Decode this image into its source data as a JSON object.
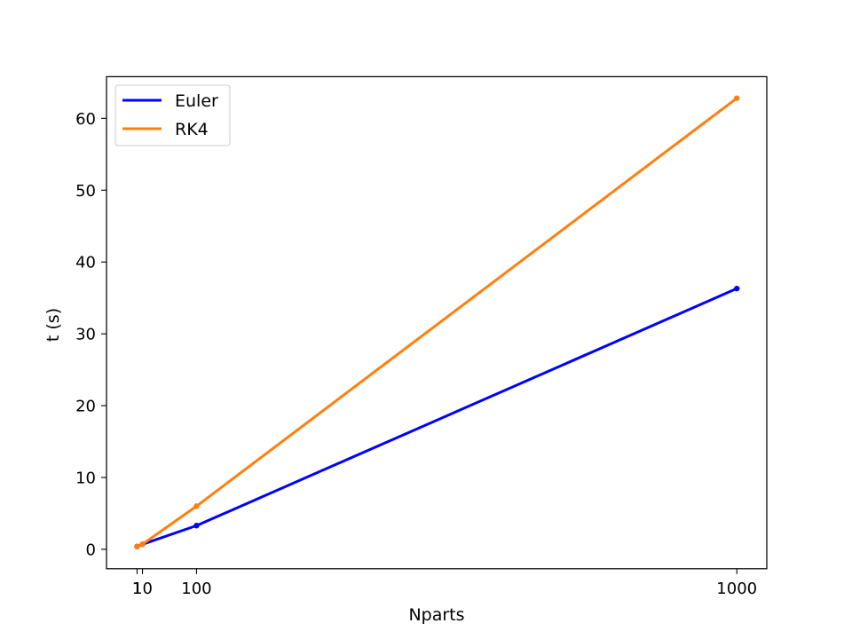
{
  "chart_data": {
    "type": "line",
    "title": "",
    "xlabel": "Nparts",
    "ylabel": "t (s)",
    "x": [
      1,
      10,
      100,
      1000
    ],
    "xlim": [
      -49.95,
      1049.95
    ],
    "ylim": [
      -2.7,
      65.8
    ],
    "xticks": [
      1,
      10,
      100,
      1000
    ],
    "xtick_labels": [
      "1",
      "10",
      "100",
      "1000"
    ],
    "yticks": [
      0,
      10,
      20,
      30,
      40,
      50,
      60
    ],
    "ytick_labels": [
      "0",
      "10",
      "20",
      "30",
      "40",
      "50",
      "60"
    ],
    "grid": false,
    "legend_position": "top-left",
    "series": [
      {
        "name": "Euler",
        "color": "#0000ff",
        "values": [
          0.4,
          0.7,
          3.3,
          36.3
        ]
      },
      {
        "name": "RK4",
        "color": "#ff7f0e",
        "values": [
          0.4,
          0.7,
          6.0,
          62.8
        ]
      }
    ]
  }
}
